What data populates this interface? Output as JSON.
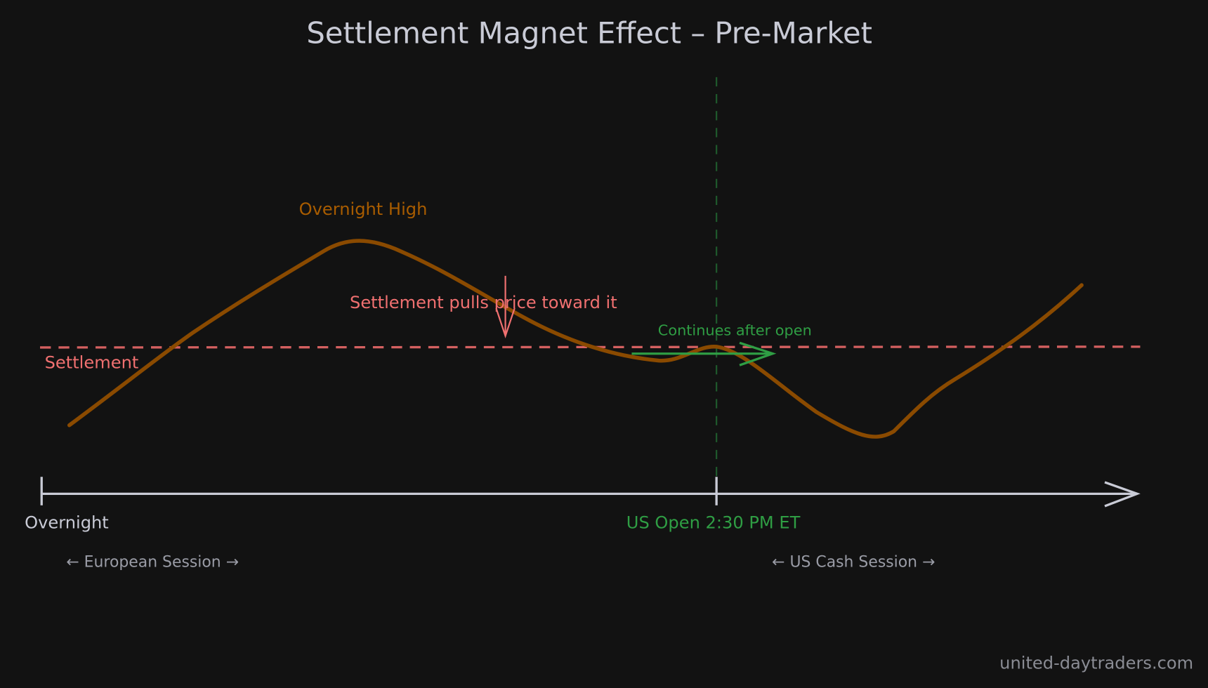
{
  "title": "Settlement Magnet Effect – Pre-Market",
  "labels": {
    "overnight_high": "Overnight High",
    "settlement_pull": "Settlement pulls price toward it",
    "continues": "Continues after open",
    "settlement": "Settlement",
    "overnight": "Overnight",
    "us_open": "US Open 2:30 PM ET",
    "european_session": "← European Session →",
    "us_cash_session": "← US Cash Session →"
  },
  "watermark": "united-daytraders.com",
  "colors": {
    "background": "#121212",
    "price": "#8a4a00",
    "settlement": "#e06c6c",
    "us_open": "#2f9e44",
    "axis": "#c9cbd6",
    "text": "#c9cbd6"
  }
}
